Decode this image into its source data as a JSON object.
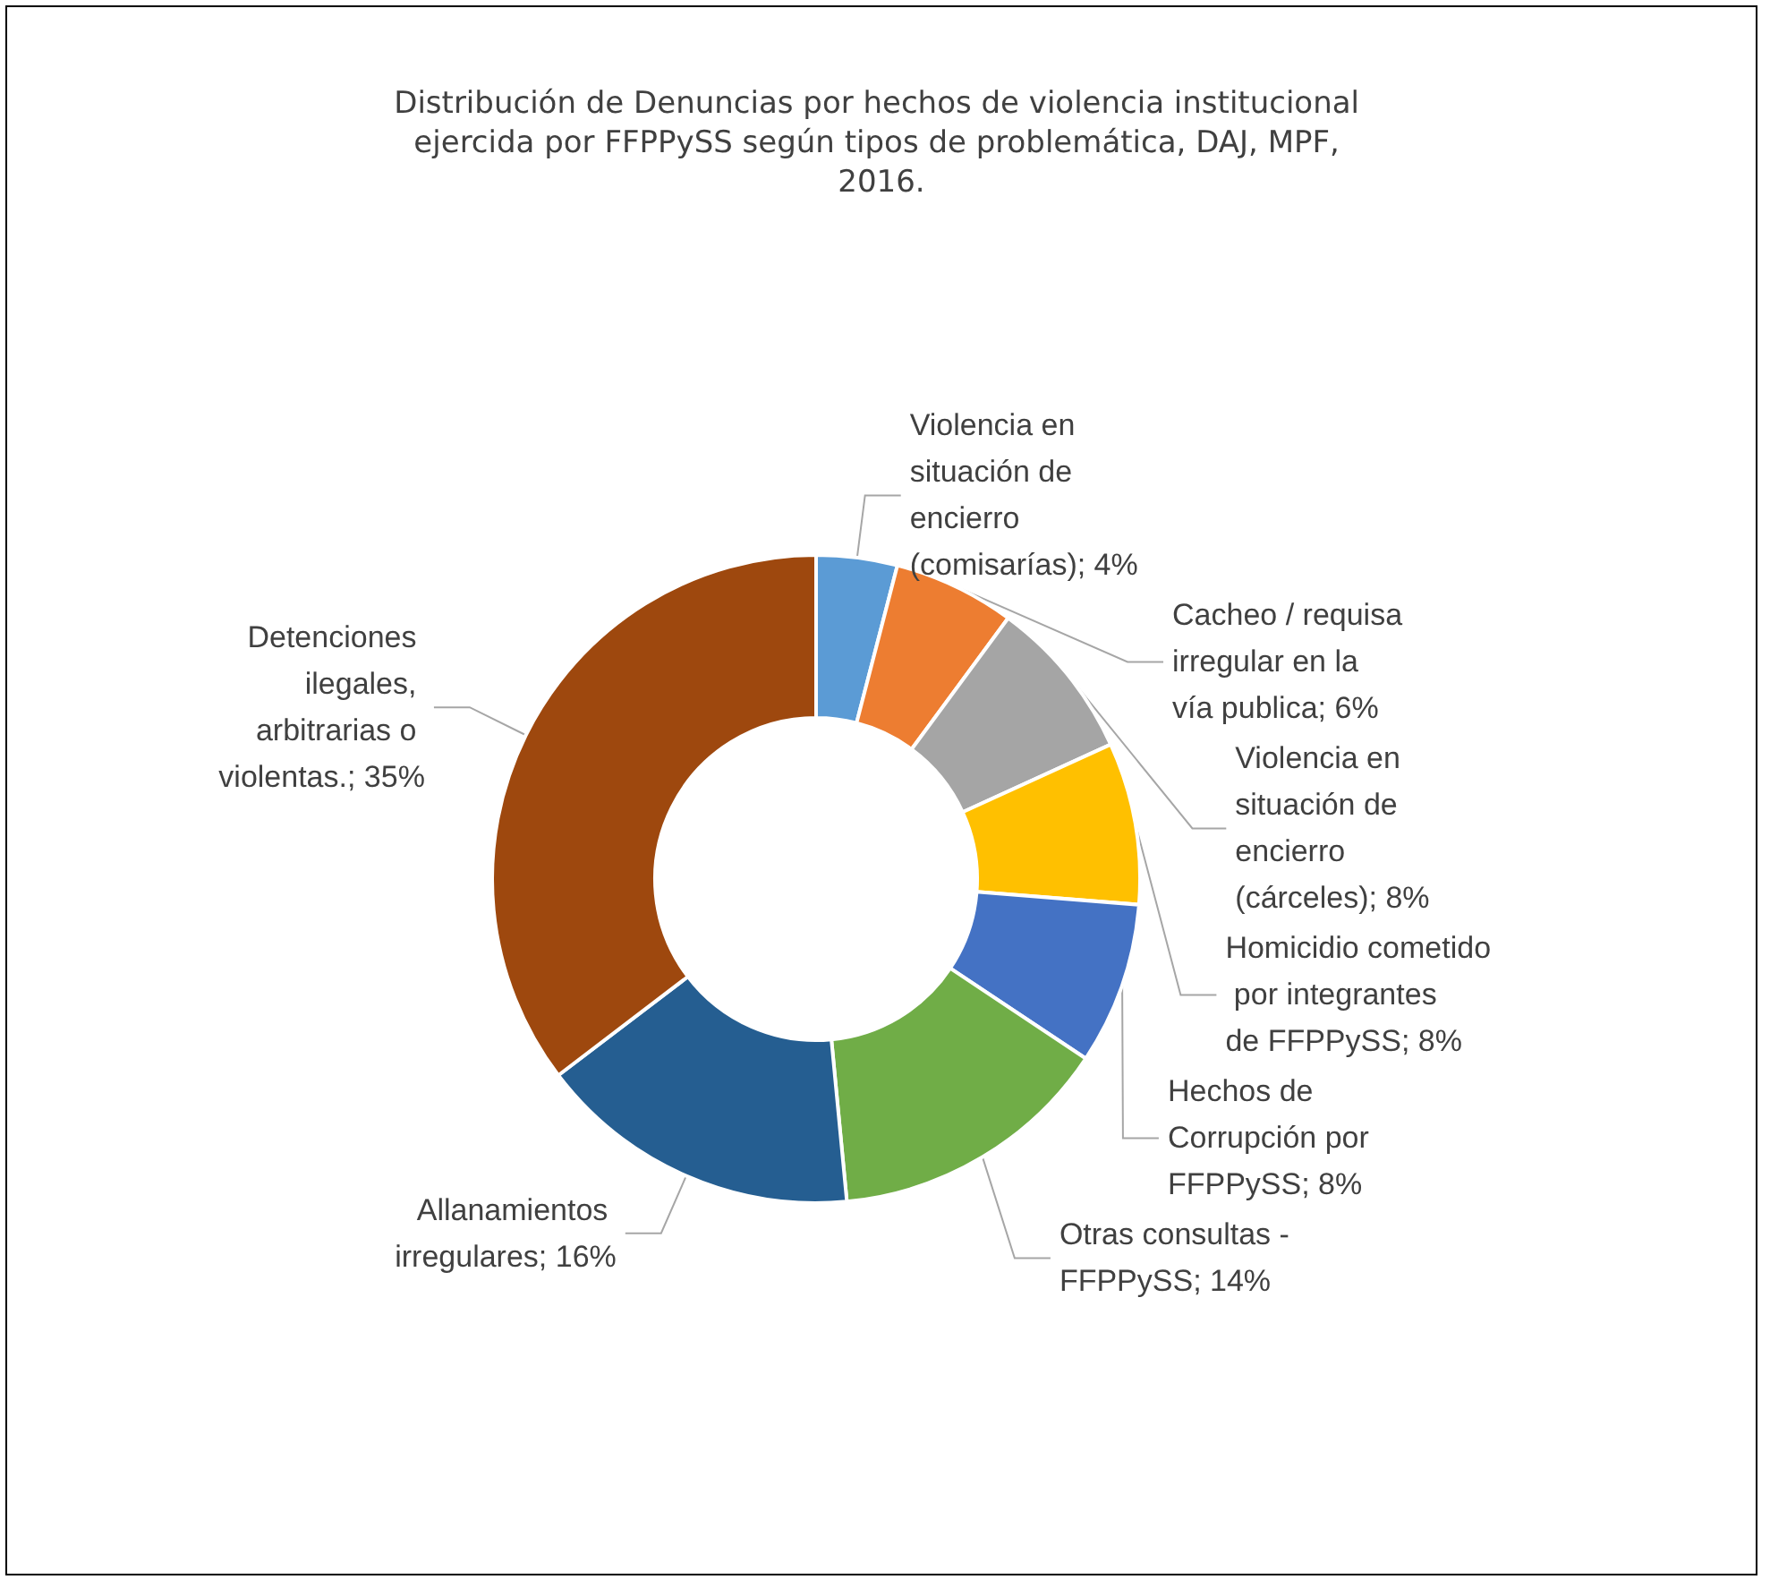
{
  "chart_data": {
    "type": "donut",
    "title": "Distribución de Denuncias por hechos de violencia institucional ejercida por FFPPySS según tipos de problemática, DAJ, MPF, 2016.",
    "categories": [
      "Violencia en situación de encierro (comisarías)",
      "Cacheo / requisa irregular en la vía publica",
      "Violencia en situación de encierro (cárceles)",
      "Homicidio cometido por integrantes de FFPPySS",
      "Hechos de Corrupción por FFPPySS",
      "Otras consultas - FFPPySS",
      "Allanamientos irregulares",
      "Detenciones ilegales, arbitrarias o violentas."
    ],
    "values": [
      4,
      6,
      8,
      8,
      8,
      14,
      16,
      35
    ],
    "value_labels": [
      "4%",
      "6%",
      "8%",
      "8%",
      "8%",
      "14%",
      "16%",
      "35%"
    ],
    "colors": [
      "#5b9bd5",
      "#ed7d31",
      "#a5a5a5",
      "#ffc000",
      "#4472c4",
      "#70ad47",
      "#255e91",
      "#9e480e"
    ],
    "legend": false
  }
}
